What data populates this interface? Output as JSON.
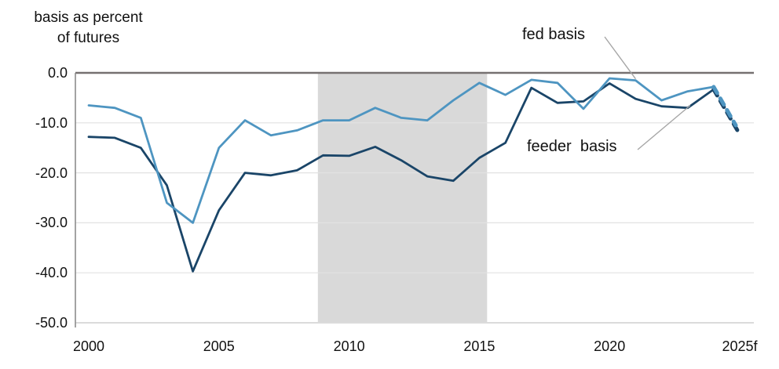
{
  "header": {
    "title_line1": "basis as percent",
    "title_line2": "of futures"
  },
  "chart_data": {
    "type": "line",
    "title": "basis as percent of futures",
    "xlabel": "",
    "ylabel": "basis as percent of futures",
    "x": [
      2000,
      2001,
      2002,
      2003,
      2004,
      2005,
      2006,
      2007,
      2008,
      2009,
      2010,
      2011,
      2012,
      2013,
      2014,
      2015,
      2016,
      2017,
      2018,
      2019,
      2020,
      2021,
      2022,
      2023,
      2024,
      2025
    ],
    "x_tick_labels": [
      "2000",
      "2005",
      "2010",
      "2015",
      "2020",
      "2025f"
    ],
    "y_tick_labels": [
      "0.0",
      "-10.0",
      "-20.0",
      "-30.0",
      "-40.0",
      "-50.0"
    ],
    "y_tick_values": [
      0,
      -10,
      -20,
      -30,
      -40,
      -50
    ],
    "xlim": [
      2000,
      2025
    ],
    "ylim": [
      -50,
      0
    ],
    "grid": "horizontal",
    "legend_position": "inline-callouts",
    "forecast_note": "last point (2025f) drawn as thick dashed forecast segment",
    "series": [
      {
        "name": "fed basis",
        "color": "#4e95c1",
        "line_style": "solid, dashed forecast tail",
        "values": [
          -6.5,
          -7.0,
          -9.0,
          -26.0,
          -30.0,
          -15.0,
          -9.5,
          -12.5,
          -11.5,
          -9.5,
          -9.5,
          -7.0,
          -9.0,
          -9.5,
          -5.5,
          -2.0,
          -4.4,
          -1.4,
          -2.0,
          -7.2,
          -1.1,
          -1.5,
          -5.5,
          -3.7,
          -2.8,
          -10.5
        ]
      },
      {
        "name": "feeder basis",
        "color": "#1a4568",
        "line_style": "solid, dashed forecast tail",
        "values": [
          -12.8,
          -13.0,
          -15.0,
          -22.5,
          -39.7,
          -27.5,
          -20.0,
          -20.5,
          -19.5,
          -16.5,
          -16.6,
          -14.8,
          -17.5,
          -20.7,
          -21.6,
          -17.0,
          -14.0,
          -3.0,
          -6.0,
          -5.7,
          -2.1,
          -5.2,
          -6.7,
          -7.0,
          -3.3,
          -12.3
        ]
      }
    ],
    "shaded_band": {
      "x_start": 2008.8,
      "x_end": 2015.3,
      "color": "#d9d9d9"
    },
    "annotations": [
      {
        "text": "fed basis",
        "points_to_series": "fed basis"
      },
      {
        "text": "feeder  basis",
        "points_to_series": "feeder basis"
      }
    ],
    "colors": {
      "zero_line": "#767171",
      "axis_line": "#8c8c8c",
      "gridline": "#e2e2e2",
      "bottom_axis": "#cfcfcf",
      "leader_line": "#a6a6a6",
      "text": "#111111"
    }
  }
}
